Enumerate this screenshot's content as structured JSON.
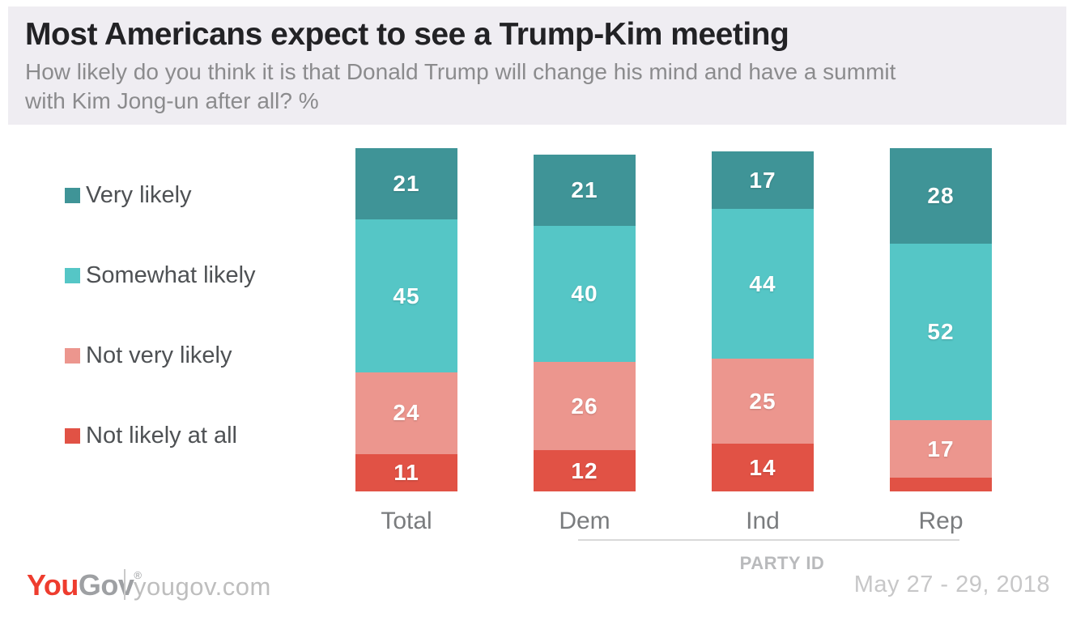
{
  "header": {
    "title": "Most Americans expect to see a Trump-Kim meeting",
    "subtitle": "How likely do you think it is that Donald Trump will change his mind and have a summit with Kim Jong-un after all? %",
    "subtitle_lines": [
      "How likely do you think it is that Donald Trump will change his mind and have a summit",
      "with Kim Jong-un after all? %"
    ]
  },
  "chart_data": {
    "type": "bar",
    "stacked": true,
    "unit": "%",
    "title": "Most Americans expect to see a Trump-Kim meeting",
    "categories": [
      "Total",
      "Dem",
      "Ind",
      "Rep"
    ],
    "series": [
      {
        "name": "Very likely",
        "color": "#3f9497",
        "values": [
          21,
          21,
          17,
          28
        ]
      },
      {
        "name": "Somewhat likely",
        "color": "#55c6c6",
        "values": [
          45,
          40,
          44,
          52
        ]
      },
      {
        "name": "Not very likely",
        "color": "#ec968e",
        "values": [
          24,
          26,
          25,
          17
        ]
      },
      {
        "name": "Not likely at all",
        "color": "#e15245",
        "values": [
          11,
          12,
          14,
          4
        ]
      }
    ],
    "value_label_color": "#ffffff",
    "value_labels_shown": [
      [
        21,
        45,
        24,
        11
      ],
      [
        21,
        40,
        26,
        12
      ],
      [
        17,
        44,
        25,
        14
      ],
      [
        28,
        52,
        17,
        null
      ]
    ],
    "group_axis": {
      "label": "PARTY ID",
      "categories": [
        "Dem",
        "Ind",
        "Rep"
      ]
    },
    "legend_position": "left",
    "axis_note": "segments of each bar sum to ~100%"
  },
  "footer": {
    "logo_you": "You",
    "logo_gov": "Gov",
    "logo_registered": "®",
    "website": "yougov.com",
    "date_range": "May 27 - 29, 2018"
  }
}
